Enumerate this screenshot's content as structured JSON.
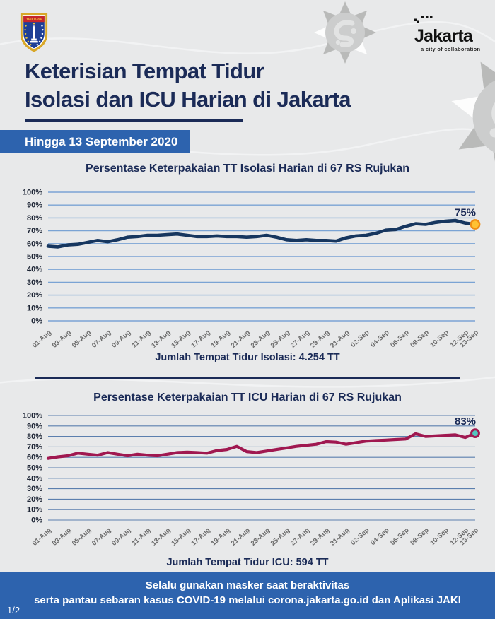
{
  "colors": {
    "navy": "#1b2b57",
    "banner_blue": "#2d63ae",
    "background": "#e8e9ea",
    "isolasi_line": "#16365f",
    "icu_line": "#a01850",
    "isolasi_marker_fill": "#ffc233",
    "isolasi_marker_stroke": "#ef8d15",
    "icu_marker_fill": "#52c5bd",
    "icu_marker_stroke": "#a01850"
  },
  "header": {
    "crest_banner": "JAYA RAYA",
    "wordmark": "Jakarta",
    "tagline": "a city of collaboration",
    "title_line1": "Keterisian Tempat Tidur",
    "title_line2": "Isolasi dan ICU Harian di Jakarta",
    "date_banner": "Hingga 13 September 2020"
  },
  "footer": {
    "line1": "Selalu gunakan masker saat beraktivitas",
    "line2": "serta pantau sebaran kasus COVID-19 melalui corona.jakarta.go.id dan Aplikasi JAKI",
    "page_indicator": "1/2"
  },
  "chart_data": [
    {
      "type": "line",
      "title": "Persentase Keterpakaian TT Isolasi Harian di 67 RS Rujukan",
      "caption": "Jumlah Tempat Tidur Isolasi: 4.254 TT",
      "ylim": [
        0,
        100
      ],
      "ytick_labels": [
        "0%",
        "10%",
        "20%",
        "30%",
        "40%",
        "50%",
        "60%",
        "70%",
        "80%",
        "90%",
        "100%"
      ],
      "tick_labels": [
        "01-Aug",
        "03-Aug",
        "05-Aug",
        "07-Aug",
        "09-Aug",
        "11-Aug",
        "13-Aug",
        "15-Aug",
        "17-Aug",
        "19-Aug",
        "21-Aug",
        "23-Aug",
        "25-Aug",
        "27-Aug",
        "29-Aug",
        "31-Aug",
        "02-Sep",
        "04-Sep",
        "06-Sep",
        "08-Sep",
        "10-Sep",
        "12-Sep",
        "13-Sep"
      ],
      "tick_day_indices": [
        0,
        2,
        4,
        6,
        8,
        10,
        12,
        14,
        16,
        18,
        20,
        22,
        24,
        26,
        28,
        30,
        32,
        34,
        36,
        38,
        40,
        42,
        43
      ],
      "dates": [
        "01-Aug",
        "02-Aug",
        "03-Aug",
        "04-Aug",
        "05-Aug",
        "06-Aug",
        "07-Aug",
        "08-Aug",
        "09-Aug",
        "10-Aug",
        "11-Aug",
        "12-Aug",
        "13-Aug",
        "14-Aug",
        "15-Aug",
        "16-Aug",
        "17-Aug",
        "18-Aug",
        "19-Aug",
        "20-Aug",
        "21-Aug",
        "22-Aug",
        "23-Aug",
        "24-Aug",
        "25-Aug",
        "26-Aug",
        "27-Aug",
        "28-Aug",
        "29-Aug",
        "30-Aug",
        "31-Aug",
        "01-Sep",
        "02-Sep",
        "03-Sep",
        "04-Sep",
        "05-Sep",
        "06-Sep",
        "07-Sep",
        "08-Sep",
        "09-Sep",
        "10-Sep",
        "11-Sep",
        "12-Sep",
        "13-Sep"
      ],
      "values": [
        58,
        57.5,
        59,
        59.5,
        61,
        62.5,
        61.5,
        63,
        65,
        65.5,
        66.5,
        66.5,
        67,
        67.5,
        66.5,
        65.5,
        65.5,
        66,
        65.5,
        65.5,
        65,
        65.5,
        66.5,
        65,
        63,
        62.5,
        63,
        62.5,
        62.5,
        62,
        64.5,
        66,
        66.5,
        68,
        70.5,
        71,
        73.5,
        75.5,
        75,
        76.5,
        77.5,
        78,
        76,
        75
      ],
      "end_label": "75%",
      "line_color": "#16365f",
      "grid_color": "#7aa3d4",
      "marker_fill": "#ffc233",
      "marker_stroke": "#ef8d15"
    },
    {
      "type": "line",
      "title": "Persentase Keterpakaian TT ICU Harian di 67 RS Rujukan",
      "caption": "Jumlah Tempat Tidur ICU: 594 TT",
      "ylim": [
        0,
        100
      ],
      "ytick_labels": [
        "0%",
        "10%",
        "20%",
        "30%",
        "40%",
        "50%",
        "60%",
        "70%",
        "80%",
        "90%",
        "100%"
      ],
      "tick_labels": [
        "01-Aug",
        "03-Aug",
        "05-Aug",
        "07-Aug",
        "09-Aug",
        "11-Aug",
        "13-Aug",
        "15-Aug",
        "17-Aug",
        "19-Aug",
        "21-Aug",
        "23-Aug",
        "25-Aug",
        "27-Aug",
        "29-Aug",
        "31-Aug",
        "02-Sep",
        "04-Sep",
        "06-Sep",
        "08-Sep",
        "10-Sep",
        "12-Sep",
        "13-Sep"
      ],
      "tick_day_indices": [
        0,
        2,
        4,
        6,
        8,
        10,
        12,
        14,
        16,
        18,
        20,
        22,
        24,
        26,
        28,
        30,
        32,
        34,
        36,
        38,
        40,
        42,
        43
      ],
      "dates": [
        "01-Aug",
        "02-Aug",
        "03-Aug",
        "04-Aug",
        "05-Aug",
        "06-Aug",
        "07-Aug",
        "08-Aug",
        "09-Aug",
        "10-Aug",
        "11-Aug",
        "12-Aug",
        "13-Aug",
        "14-Aug",
        "15-Aug",
        "16-Aug",
        "17-Aug",
        "18-Aug",
        "19-Aug",
        "20-Aug",
        "21-Aug",
        "22-Aug",
        "23-Aug",
        "24-Aug",
        "25-Aug",
        "26-Aug",
        "27-Aug",
        "28-Aug",
        "29-Aug",
        "30-Aug",
        "31-Aug",
        "01-Sep",
        "02-Sep",
        "03-Sep",
        "04-Sep",
        "05-Sep",
        "06-Sep",
        "07-Sep",
        "08-Sep",
        "09-Sep",
        "10-Sep",
        "11-Sep",
        "12-Sep",
        "13-Sep"
      ],
      "values": [
        59,
        60.5,
        61.5,
        64,
        63,
        62,
        64.5,
        63,
        61.5,
        63,
        62,
        61.5,
        63,
        64.5,
        65,
        64.5,
        64,
        66.5,
        67.5,
        70.5,
        65.5,
        64.5,
        66,
        67.5,
        69,
        70.5,
        71.5,
        72.5,
        75,
        74.5,
        72.5,
        74,
        75.5,
        76,
        76.5,
        77,
        77.5,
        82.5,
        80,
        80.5,
        81,
        81.5,
        79,
        83
      ],
      "end_label": "83%",
      "line_color": "#a01850",
      "grid_color": "#5b7fae",
      "marker_fill": "#52c5bd",
      "marker_stroke": "#a01850"
    }
  ]
}
